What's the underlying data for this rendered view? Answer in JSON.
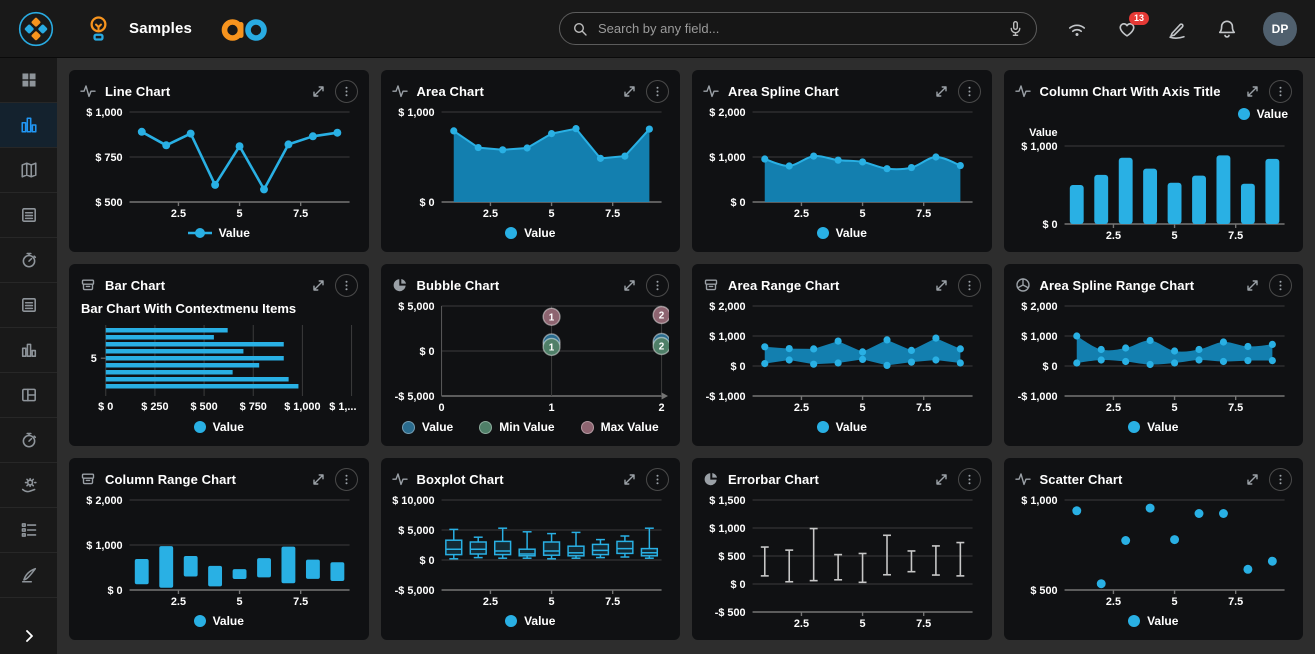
{
  "navbar": {
    "brand": "Samples",
    "search": {
      "placeholder": "Search by any field..."
    },
    "icons": [
      {
        "name": "wifi"
      },
      {
        "name": "favorites-heart",
        "badge": "13"
      },
      {
        "name": "signature-pen"
      },
      {
        "name": "notifications-bell"
      }
    ],
    "avatar_initials": "DP"
  },
  "sidebar": {
    "items": [
      {
        "icon": "dashboard",
        "active": false
      },
      {
        "icon": "analytics",
        "active": true
      },
      {
        "icon": "map",
        "active": false
      },
      {
        "icon": "report",
        "active": false
      },
      {
        "icon": "timer",
        "active": false
      },
      {
        "icon": "report",
        "active": false
      },
      {
        "icon": "chart-column",
        "active": false
      },
      {
        "icon": "layout",
        "active": false
      },
      {
        "icon": "timer",
        "active": false
      },
      {
        "icon": "settings-hand",
        "active": false
      },
      {
        "icon": "checklist",
        "active": false
      },
      {
        "icon": "pen",
        "active": false
      }
    ],
    "collapse_label": "›"
  },
  "colors": {
    "accent": "#1489bd",
    "accent_bright": "#29b0e4",
    "grid": "#3c3c3c",
    "axis": "#757575",
    "errorbar": "#c7c7c7",
    "boxplot_fill": "rgba(41,176,228,0.16)",
    "bubble_value": "#2a6b8d",
    "bubble_min": "#4f7f68",
    "bubble_max": "#8d6470",
    "badge_red": "#e53935",
    "sidebar_active": "#2196f3",
    "logo_orange": "#f7941e",
    "logo_blue": "#29abe2"
  },
  "chart_data": [
    {
      "title": "Line Chart",
      "icon": "pulse",
      "type": "line",
      "x_values": [
        1,
        2,
        3,
        4,
        5,
        6,
        7,
        8,
        9
      ],
      "values": [
        890,
        815,
        880,
        595,
        810,
        570,
        820,
        865,
        885
      ],
      "ylim": [
        500,
        1000
      ],
      "yticks": [
        1000,
        750,
        500
      ],
      "xticks": [
        2.5,
        5,
        7.5
      ],
      "legend": [
        {
          "label": "Value"
        }
      ]
    },
    {
      "title": "Area Chart",
      "icon": "pulse",
      "type": "area",
      "x_values": [
        1,
        2,
        3,
        4,
        5,
        6,
        7,
        8,
        9
      ],
      "values": [
        790,
        605,
        580,
        600,
        760,
        815,
        485,
        510,
        810
      ],
      "ylim": [
        0,
        1000
      ],
      "yticks": [
        1000,
        0
      ],
      "xticks": [
        2.5,
        5,
        7.5
      ],
      "legend": [
        {
          "label": "Value"
        }
      ]
    },
    {
      "title": "Area Spline Chart",
      "icon": "pulse",
      "type": "areaspline",
      "x_values": [
        1,
        2,
        3,
        4,
        5,
        6,
        7,
        8,
        9
      ],
      "values": [
        955,
        800,
        1020,
        930,
        890,
        740,
        765,
        1000,
        810
      ],
      "ylim": [
        0,
        2000
      ],
      "yticks": [
        2000,
        1000,
        0
      ],
      "xticks": [
        2.5,
        5,
        7.5
      ],
      "legend": [
        {
          "label": "Value"
        }
      ]
    },
    {
      "title": "Column Chart With Axis Title",
      "icon": "pulse",
      "type": "column",
      "x_values": [
        1,
        2,
        3,
        4,
        5,
        6,
        7,
        8,
        9
      ],
      "values": [
        500,
        630,
        850,
        710,
        530,
        620,
        880,
        515,
        835
      ],
      "ylim": [
        0,
        1000
      ],
      "yticks": [
        1000,
        0
      ],
      "xticks": [
        2.5,
        5,
        7.5
      ],
      "axis_title": "Value",
      "legend_top": true,
      "legend": [
        {
          "label": "Value"
        }
      ]
    },
    {
      "title": "Bar Chart",
      "icon": "archive",
      "type": "bar",
      "subtitle": "Bar Chart With Contextmenu Items",
      "values": [
        620,
        550,
        905,
        700,
        905,
        780,
        645,
        930,
        980
      ],
      "xlim": [
        0,
        1250
      ],
      "xtick_labels": [
        "$ 0",
        "$ 250",
        "$ 500",
        "$ 750",
        "$ 1,000",
        "$ 1,..."
      ],
      "ytick_label": "5",
      "legend": [
        {
          "label": "Value"
        }
      ]
    },
    {
      "title": "Bubble Chart",
      "icon": "pie",
      "type": "bubble",
      "ylim": [
        -5000,
        5000
      ],
      "yticks": [
        5000,
        0,
        -5000
      ],
      "xrange": [
        0,
        2
      ],
      "xticks": [
        0,
        1,
        2
      ],
      "series": [
        {
          "name": "Value",
          "color": "#2a6b8d",
          "points": [
            [
              1,
              950
            ],
            [
              2,
              1000
            ]
          ]
        },
        {
          "name": "Min Value",
          "color": "#4f7f68",
          "points": [
            [
              1,
              450
            ],
            [
              2,
              550
            ]
          ]
        },
        {
          "name": "Max Value",
          "color": "#8d6470",
          "points": [
            [
              1,
              3800
            ],
            [
              2,
              4000
            ]
          ]
        }
      ],
      "legend": [
        {
          "label": "Value",
          "color": "#2a6b8d"
        },
        {
          "label": "Min Value",
          "color": "#4f7f68"
        },
        {
          "label": "Max Value",
          "color": "#8d6470"
        }
      ]
    },
    {
      "title": "Area Range Chart",
      "icon": "archive",
      "type": "arearange",
      "x_values": [
        1,
        2,
        3,
        4,
        5,
        6,
        7,
        8,
        9
      ],
      "highs": [
        640,
        580,
        570,
        830,
        470,
        870,
        520,
        930,
        570
      ],
      "lows": [
        80,
        200,
        60,
        100,
        220,
        20,
        130,
        200,
        100
      ],
      "ylim": [
        -1000,
        2000
      ],
      "yticks": [
        2000,
        1000,
        0,
        -1000
      ],
      "xticks": [
        2.5,
        5,
        7.5
      ],
      "legend": [
        {
          "label": "Value"
        }
      ]
    },
    {
      "title": "Area Spline Range Chart",
      "icon": "pie-outline",
      "type": "areasplinerange",
      "x_values": [
        1,
        2,
        3,
        4,
        5,
        6,
        7,
        8,
        9
      ],
      "highs": [
        1000,
        550,
        600,
        850,
        500,
        550,
        800,
        650,
        720
      ],
      "lows": [
        100,
        200,
        150,
        50,
        100,
        200,
        150,
        180,
        180
      ],
      "ylim": [
        -1000,
        2000
      ],
      "yticks": [
        2000,
        1000,
        0,
        -1000
      ],
      "xticks": [
        2.5,
        5,
        7.5
      ],
      "legend": [
        {
          "label": "Value"
        }
      ]
    },
    {
      "title": "Column Range Chart",
      "icon": "archive",
      "type": "columnrange",
      "x_values": [
        1,
        2,
        3,
        4,
        5,
        6,
        7,
        8,
        9
      ],
      "ranges": [
        [
          130,
          690
        ],
        [
          50,
          975
        ],
        [
          300,
          755
        ],
        [
          80,
          535
        ],
        [
          245,
          465
        ],
        [
          280,
          710
        ],
        [
          150,
          965
        ],
        [
          245,
          675
        ],
        [
          200,
          615
        ]
      ],
      "ylim": [
        0,
        2000
      ],
      "yticks": [
        2000,
        1000,
        0
      ],
      "xticks": [
        2.5,
        5,
        7.5
      ],
      "legend": [
        {
          "label": "Value"
        }
      ]
    },
    {
      "title": "Boxplot Chart",
      "icon": "pulse",
      "type": "boxplot",
      "x_values": [
        1,
        2,
        3,
        4,
        5,
        6,
        7,
        8,
        9
      ],
      "boxes": [
        [
          200,
          900,
          1800,
          3300,
          5100
        ],
        [
          400,
          1000,
          1800,
          3000,
          3800
        ],
        [
          300,
          900,
          1500,
          3100,
          5300
        ],
        [
          300,
          700,
          1000,
          1800,
          4700
        ],
        [
          200,
          800,
          1500,
          3000,
          4400
        ],
        [
          300,
          700,
          1200,
          2300,
          4600
        ],
        [
          400,
          900,
          1600,
          2600,
          3400
        ],
        [
          500,
          1100,
          1900,
          3100,
          4000
        ],
        [
          300,
          700,
          1200,
          1900,
          5300
        ]
      ],
      "ylim": [
        -5000,
        10000
      ],
      "yticks": [
        10000,
        5000,
        0,
        -5000
      ],
      "xticks": [
        2.5,
        5,
        7.5
      ],
      "legend": [
        {
          "label": "Value"
        }
      ]
    },
    {
      "title": "Errorbar Chart",
      "icon": "pie",
      "type": "errorbar",
      "x_values": [
        1,
        2,
        3,
        4,
        5,
        6,
        7,
        8,
        9
      ],
      "ranges": [
        [
          145,
          660
        ],
        [
          40,
          605
        ],
        [
          60,
          990
        ],
        [
          75,
          525
        ],
        [
          30,
          545
        ],
        [
          165,
          870
        ],
        [
          220,
          590
        ],
        [
          160,
          680
        ],
        [
          145,
          740
        ]
      ],
      "ylim": [
        -500,
        1500
      ],
      "yticks": [
        1500,
        1000,
        500,
        0,
        -500
      ],
      "xticks": [
        2.5,
        5,
        7.5
      ],
      "legend": []
    },
    {
      "title": "Scatter Chart",
      "icon": "pulse",
      "type": "scatter",
      "x_values": [
        1,
        2,
        3,
        4,
        5,
        6,
        7,
        8,
        9
      ],
      "values": [
        940,
        535,
        775,
        955,
        780,
        925,
        925,
        615,
        660
      ],
      "ylim": [
        500,
        1000
      ],
      "yticks": [
        1000,
        500
      ],
      "xticks": [
        2.5,
        5,
        7.5
      ],
      "legend": [
        {
          "label": "Value"
        }
      ]
    }
  ]
}
